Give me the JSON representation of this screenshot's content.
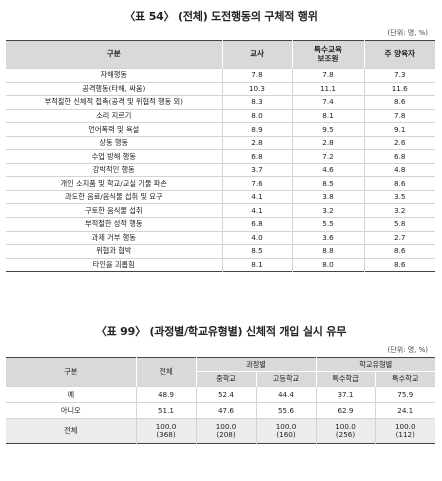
{
  "table1": {
    "title": "〈표 54〉 (전체) 도전행동의 구체적 행위",
    "unit": "(단위: 명, %)",
    "headers": [
      "구분",
      "교사",
      "특수교육\n보조원",
      "주 양육자"
    ],
    "header_lines": [
      [
        "구분"
      ],
      [
        "교사"
      ],
      [
        "특수교육",
        "보조원"
      ],
      [
        "주 양육자"
      ]
    ],
    "rows": [
      [
        "자해행동",
        "7.8",
        "7.8",
        "7.3"
      ],
      [
        "공격행동(타해, 싸움)",
        "10.3",
        "11.1",
        "11.6"
      ],
      [
        "부적절한 신체적 접촉(공격 및 위협적 행동 외)",
        "8.3",
        "7.4",
        "8.6"
      ],
      [
        "소리 지르기",
        "8.0",
        "8.1",
        "7.8"
      ],
      [
        "언어폭력 및 욕설",
        "8.9",
        "9.5",
        "9.1"
      ],
      [
        "상동 행동",
        "2.8",
        "2.8",
        "2.6"
      ],
      [
        "수업 방해 행동",
        "6.8",
        "7.2",
        "6.8"
      ],
      [
        "강박적인 행동",
        "3.7",
        "4.6",
        "4.8"
      ],
      [
        "개인 소지품 및 학교/교실 기물 파손",
        "7.6",
        "8.5",
        "8.6"
      ],
      [
        "과도한 음료/음식물 섭취 및 요구",
        "4.1",
        "3.8",
        "3.5"
      ],
      [
        "구토한 음식물 섭취",
        "4.1",
        "3.2",
        "3.2"
      ],
      [
        "부적절한 성적 행동",
        "6.8",
        "5.5",
        "5.8"
      ],
      [
        "과제 거부 행동",
        "4.0",
        "3.6",
        "2.7"
      ],
      [
        "위협과 협박",
        "8.5",
        "8.8",
        "8.6"
      ],
      [
        "타인을 괴롭힘",
        "8.1",
        "8.0",
        "8.6"
      ]
    ]
  },
  "table2": {
    "title": "〈표 99〉 (과정별/학교유형별) 신체적 개입 실시 유무",
    "unit": "(단위: 명, %)",
    "head": {
      "category": "구분",
      "total": "전체",
      "group1": "과정별",
      "group2": "학교유형별",
      "sub": [
        "중학교",
        "고등학교",
        "특수학급",
        "특수학교"
      ]
    },
    "rows": [
      {
        "label": "예",
        "values": [
          "48.9",
          "52.4",
          "44.4",
          "37.1",
          "75.9"
        ]
      },
      {
        "label": "아니오",
        "values": [
          "51.1",
          "47.6",
          "55.6",
          "62.9",
          "24.1"
        ]
      }
    ],
    "total_row": {
      "label": "전체",
      "values": [
        "100.0",
        "100.0",
        "100.0",
        "100.0",
        "100.0"
      ],
      "counts": [
        "(368)",
        "(208)",
        "(160)",
        "(256)",
        "(112)"
      ]
    }
  }
}
